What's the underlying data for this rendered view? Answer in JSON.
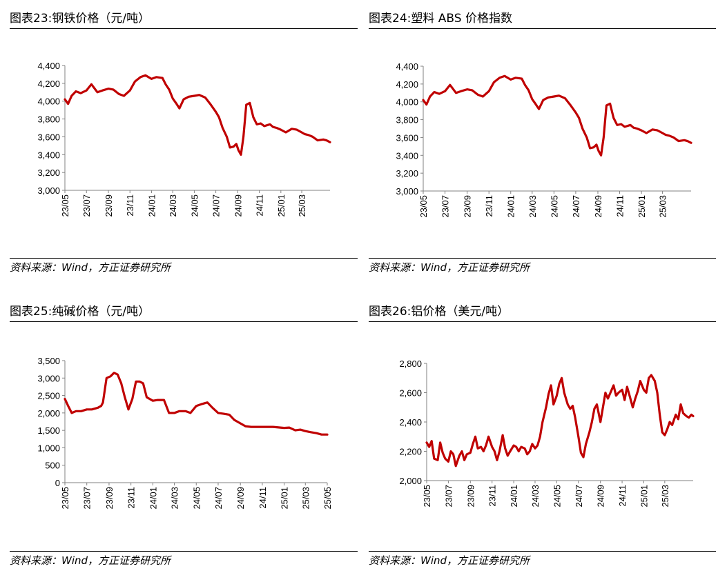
{
  "source_text": "资料来源：Wind，方正证券研究所",
  "colors": {
    "series": "#c00000",
    "axis": "#808080",
    "rule": "#000000"
  },
  "chart_data": [
    {
      "id": "steel",
      "type": "line",
      "title": "图表23:钢铁价格（元/吨）",
      "xlabel": "",
      "ylabel": "",
      "ylim": [
        3000,
        4400
      ],
      "yticks": [
        "3,000",
        "3,200",
        "3,400",
        "3,600",
        "3,800",
        "4,000",
        "4,200",
        "4,400"
      ],
      "ytick_values": [
        3000,
        3200,
        3400,
        3600,
        3800,
        4000,
        4200,
        4400
      ],
      "xlim": [
        "2023-05-01",
        "2025-05-20"
      ],
      "xticks": [
        "23/05",
        "23/07",
        "23/09",
        "23/11",
        "24/01",
        "24/03",
        "24/05",
        "24/07",
        "24/09",
        "24/11",
        "25/01",
        "25/03"
      ],
      "xtick_dates": [
        "2023-05-01",
        "2023-07-01",
        "2023-09-01",
        "2023-11-01",
        "2024-01-01",
        "2024-03-01",
        "2024-05-01",
        "2024-07-01",
        "2024-09-01",
        "2024-11-01",
        "2025-01-01",
        "2025-03-01"
      ],
      "grid": false,
      "legend": "none",
      "series": [
        {
          "x": [
            "2023-05-01",
            "2023-05-10",
            "2023-05-20",
            "2023-06-01",
            "2023-06-15",
            "2023-07-01",
            "2023-07-15",
            "2023-08-01",
            "2023-08-15",
            "2023-09-01",
            "2023-09-15",
            "2023-10-01",
            "2023-10-15",
            "2023-11-01",
            "2023-11-15",
            "2023-12-01",
            "2023-12-15",
            "2024-01-01",
            "2024-01-15",
            "2024-02-01",
            "2024-02-10",
            "2024-02-20",
            "2024-03-01",
            "2024-03-10",
            "2024-03-20",
            "2024-04-01",
            "2024-04-15",
            "2024-05-01",
            "2024-05-15",
            "2024-06-01",
            "2024-06-15",
            "2024-07-01",
            "2024-07-10",
            "2024-07-20",
            "2024-08-01",
            "2024-08-10",
            "2024-08-20",
            "2024-08-28",
            "2024-09-03",
            "2024-09-10",
            "2024-09-17",
            "2024-09-25",
            "2024-10-05",
            "2024-10-15",
            "2024-10-25",
            "2024-11-05",
            "2024-11-15",
            "2024-12-01",
            "2024-12-10",
            "2024-12-20",
            "2025-01-01",
            "2025-01-15",
            "2025-02-01",
            "2025-02-15",
            "2025-03-01",
            "2025-03-10",
            "2025-03-20",
            "2025-04-01",
            "2025-04-15",
            "2025-05-01",
            "2025-05-10",
            "2025-05-20"
          ],
          "values": [
            4020,
            3970,
            4060,
            4110,
            4090,
            4120,
            4190,
            4100,
            4120,
            4140,
            4130,
            4080,
            4060,
            4120,
            4220,
            4270,
            4290,
            4250,
            4270,
            4260,
            4190,
            4130,
            4030,
            3980,
            3920,
            4020,
            4050,
            4060,
            4070,
            4040,
            3970,
            3880,
            3820,
            3700,
            3600,
            3480,
            3490,
            3520,
            3450,
            3400,
            3600,
            3960,
            3980,
            3820,
            3740,
            3750,
            3720,
            3740,
            3710,
            3700,
            3680,
            3650,
            3690,
            3680,
            3650,
            3630,
            3620,
            3600,
            3560,
            3570,
            3560,
            3540
          ]
        }
      ]
    },
    {
      "id": "abs",
      "type": "line",
      "title": "图表24:塑料 ABS 价格指数",
      "xlabel": "",
      "ylabel": "",
      "ylim": [
        3000,
        4400
      ],
      "yticks": [
        "3,000",
        "3,200",
        "3,400",
        "3,600",
        "3,800",
        "4,000",
        "4,200",
        "4,400"
      ],
      "ytick_values": [
        3000,
        3200,
        3400,
        3600,
        3800,
        4000,
        4200,
        4400
      ],
      "xlim": [
        "2023-05-01",
        "2025-05-20"
      ],
      "xticks": [
        "23/05",
        "23/07",
        "23/09",
        "23/11",
        "24/01",
        "24/03",
        "24/05",
        "24/07",
        "24/09",
        "24/11",
        "25/01",
        "25/03"
      ],
      "xtick_dates": [
        "2023-05-01",
        "2023-07-01",
        "2023-09-01",
        "2023-11-01",
        "2024-01-01",
        "2024-03-01",
        "2024-05-01",
        "2024-07-01",
        "2024-09-01",
        "2024-11-01",
        "2025-01-01",
        "2025-03-01"
      ],
      "grid": false,
      "legend": "none",
      "series": [
        {
          "x": [
            "2023-05-01",
            "2023-05-10",
            "2023-05-20",
            "2023-06-01",
            "2023-06-15",
            "2023-07-01",
            "2023-07-15",
            "2023-08-01",
            "2023-08-15",
            "2023-09-01",
            "2023-09-15",
            "2023-10-01",
            "2023-10-15",
            "2023-11-01",
            "2023-11-15",
            "2023-12-01",
            "2023-12-15",
            "2024-01-01",
            "2024-01-15",
            "2024-02-01",
            "2024-02-10",
            "2024-02-20",
            "2024-03-01",
            "2024-03-10",
            "2024-03-20",
            "2024-04-01",
            "2024-04-15",
            "2024-05-01",
            "2024-05-15",
            "2024-06-01",
            "2024-06-15",
            "2024-07-01",
            "2024-07-10",
            "2024-07-20",
            "2024-08-01",
            "2024-08-10",
            "2024-08-20",
            "2024-08-28",
            "2024-09-03",
            "2024-09-10",
            "2024-09-17",
            "2024-09-25",
            "2024-10-05",
            "2024-10-15",
            "2024-10-25",
            "2024-11-05",
            "2024-11-15",
            "2024-12-01",
            "2024-12-10",
            "2024-12-20",
            "2025-01-01",
            "2025-01-15",
            "2025-02-01",
            "2025-02-15",
            "2025-03-01",
            "2025-03-10",
            "2025-03-20",
            "2025-04-01",
            "2025-04-15",
            "2025-05-01",
            "2025-05-10",
            "2025-05-20"
          ],
          "values": [
            4020,
            3970,
            4060,
            4110,
            4090,
            4120,
            4190,
            4100,
            4120,
            4140,
            4130,
            4080,
            4060,
            4120,
            4220,
            4270,
            4290,
            4250,
            4270,
            4260,
            4190,
            4130,
            4030,
            3980,
            3920,
            4020,
            4050,
            4060,
            4070,
            4040,
            3970,
            3880,
            3820,
            3700,
            3600,
            3480,
            3490,
            3520,
            3450,
            3400,
            3600,
            3960,
            3980,
            3820,
            3740,
            3750,
            3720,
            3740,
            3710,
            3700,
            3680,
            3650,
            3690,
            3680,
            3650,
            3630,
            3620,
            3600,
            3560,
            3570,
            3560,
            3540
          ]
        }
      ]
    },
    {
      "id": "soda",
      "type": "line",
      "title": "图表25:纯碱价格（元/吨）",
      "xlabel": "",
      "ylabel": "",
      "ylim": [
        0,
        3500
      ],
      "yticks": [
        "0",
        "500",
        "1,000",
        "1,500",
        "2,000",
        "2,500",
        "3,000",
        "3,500"
      ],
      "ytick_values": [
        0,
        500,
        1000,
        1500,
        2000,
        2500,
        3000,
        3500
      ],
      "xlim": [
        "2023-05-01",
        "2025-05-01"
      ],
      "xticks": [
        "23/05",
        "23/07",
        "23/09",
        "23/11",
        "24/01",
        "24/03",
        "24/05",
        "24/07",
        "24/09",
        "24/11",
        "25/01",
        "25/03",
        "25/05"
      ],
      "xtick_dates": [
        "2023-05-01",
        "2023-07-01",
        "2023-09-01",
        "2023-11-01",
        "2024-01-01",
        "2024-03-01",
        "2024-05-01",
        "2024-07-01",
        "2024-09-01",
        "2024-11-01",
        "2025-01-01",
        "2025-03-01",
        "2025-05-01"
      ],
      "grid": false,
      "legend": "none",
      "series": [
        {
          "x": [
            "2023-05-01",
            "2023-05-10",
            "2023-05-20",
            "2023-06-01",
            "2023-06-15",
            "2023-07-01",
            "2023-07-15",
            "2023-08-01",
            "2023-08-10",
            "2023-08-15",
            "2023-08-25",
            "2023-09-05",
            "2023-09-15",
            "2023-09-25",
            "2023-10-05",
            "2023-10-15",
            "2023-10-25",
            "2023-11-05",
            "2023-11-15",
            "2023-11-25",
            "2023-12-05",
            "2023-12-15",
            "2024-01-01",
            "2024-01-15",
            "2024-02-01",
            "2024-02-15",
            "2024-03-01",
            "2024-03-15",
            "2024-04-01",
            "2024-04-15",
            "2024-05-01",
            "2024-05-15",
            "2024-06-01",
            "2024-06-15",
            "2024-07-01",
            "2024-07-15",
            "2024-08-01",
            "2024-08-15",
            "2024-09-01",
            "2024-09-15",
            "2024-10-01",
            "2024-11-01",
            "2024-12-01",
            "2025-01-01",
            "2025-01-15",
            "2025-02-01",
            "2025-02-15",
            "2025-03-01",
            "2025-03-15",
            "2025-04-01",
            "2025-04-15",
            "2025-05-01"
          ],
          "values": [
            2400,
            2200,
            2000,
            2050,
            2050,
            2100,
            2100,
            2150,
            2200,
            2300,
            3000,
            3050,
            3150,
            3100,
            2850,
            2450,
            2100,
            2400,
            2900,
            2900,
            2850,
            2450,
            2350,
            2370,
            2370,
            2000,
            2000,
            2050,
            2050,
            2000,
            2200,
            2250,
            2300,
            2150,
            2000,
            1980,
            1950,
            1800,
            1700,
            1620,
            1600,
            1600,
            1600,
            1570,
            1580,
            1500,
            1520,
            1480,
            1450,
            1420,
            1380,
            1380
          ]
        }
      ]
    },
    {
      "id": "aluminum",
      "type": "line",
      "title": "图表26:铝价格（美元/吨）",
      "xlabel": "",
      "ylabel": "",
      "ylim": [
        2000,
        2800
      ],
      "yticks": [
        "2,000",
        "2,200",
        "2,400",
        "2,600",
        "2,800"
      ],
      "ytick_values": [
        2000,
        2200,
        2400,
        2600,
        2800
      ],
      "xlim": [
        "2023-05-01",
        "2025-05-20"
      ],
      "xticks": [
        "23/05",
        "23/07",
        "23/09",
        "23/11",
        "24/01",
        "24/03",
        "24/05",
        "24/07",
        "24/09",
        "24/11",
        "25/01",
        "25/03"
      ],
      "xtick_dates": [
        "2023-05-01",
        "2023-07-01",
        "2023-09-01",
        "2023-11-01",
        "2024-01-01",
        "2024-03-01",
        "2024-05-01",
        "2024-07-01",
        "2024-09-01",
        "2024-11-01",
        "2025-01-01",
        "2025-03-01"
      ],
      "grid": false,
      "legend": "none",
      "series": [
        {
          "x": [
            "2023-05-01",
            "2023-05-08",
            "2023-05-15",
            "2023-05-22",
            "2023-06-01",
            "2023-06-08",
            "2023-06-15",
            "2023-06-22",
            "2023-07-01",
            "2023-07-08",
            "2023-07-15",
            "2023-07-22",
            "2023-08-01",
            "2023-08-08",
            "2023-08-15",
            "2023-08-22",
            "2023-09-01",
            "2023-09-08",
            "2023-09-15",
            "2023-09-22",
            "2023-10-01",
            "2023-10-08",
            "2023-10-15",
            "2023-10-22",
            "2023-11-01",
            "2023-11-08",
            "2023-11-15",
            "2023-11-22",
            "2023-12-01",
            "2023-12-08",
            "2023-12-15",
            "2023-12-22",
            "2024-01-01",
            "2024-01-08",
            "2024-01-15",
            "2024-01-22",
            "2024-02-01",
            "2024-02-08",
            "2024-02-15",
            "2024-02-22",
            "2024-03-01",
            "2024-03-08",
            "2024-03-15",
            "2024-03-22",
            "2024-04-01",
            "2024-04-08",
            "2024-04-15",
            "2024-04-22",
            "2024-05-01",
            "2024-05-08",
            "2024-05-15",
            "2024-05-22",
            "2024-06-01",
            "2024-06-08",
            "2024-06-15",
            "2024-06-22",
            "2024-07-01",
            "2024-07-08",
            "2024-07-15",
            "2024-07-22",
            "2024-08-01",
            "2024-08-08",
            "2024-08-15",
            "2024-08-22",
            "2024-09-01",
            "2024-09-08",
            "2024-09-15",
            "2024-09-22",
            "2024-10-01",
            "2024-10-08",
            "2024-10-15",
            "2024-10-22",
            "2024-11-01",
            "2024-11-08",
            "2024-11-15",
            "2024-11-22",
            "2024-12-01",
            "2024-12-08",
            "2024-12-15",
            "2024-12-22",
            "2025-01-01",
            "2025-01-08",
            "2025-01-15",
            "2025-01-22",
            "2025-02-01",
            "2025-02-08",
            "2025-02-15",
            "2025-02-22",
            "2025-03-01",
            "2025-03-08",
            "2025-03-15",
            "2025-03-22",
            "2025-04-01",
            "2025-04-08",
            "2025-04-15",
            "2025-04-22",
            "2025-05-01",
            "2025-05-08",
            "2025-05-15",
            "2025-05-20"
          ],
          "values": [
            2260,
            2230,
            2270,
            2150,
            2140,
            2260,
            2190,
            2150,
            2130,
            2200,
            2180,
            2100,
            2170,
            2200,
            2140,
            2180,
            2190,
            2250,
            2300,
            2220,
            2230,
            2200,
            2240,
            2300,
            2230,
            2200,
            2140,
            2200,
            2310,
            2220,
            2170,
            2200,
            2240,
            2230,
            2200,
            2230,
            2220,
            2180,
            2200,
            2250,
            2220,
            2240,
            2300,
            2400,
            2500,
            2590,
            2650,
            2520,
            2580,
            2660,
            2700,
            2600,
            2520,
            2490,
            2510,
            2430,
            2300,
            2190,
            2160,
            2250,
            2330,
            2400,
            2490,
            2520,
            2400,
            2500,
            2600,
            2560,
            2610,
            2650,
            2580,
            2600,
            2620,
            2550,
            2640,
            2580,
            2500,
            2560,
            2610,
            2680,
            2620,
            2600,
            2700,
            2720,
            2680,
            2600,
            2450,
            2330,
            2310,
            2350,
            2400,
            2380,
            2450,
            2420,
            2520,
            2460,
            2440,
            2430,
            2450,
            2440
          ]
        }
      ]
    }
  ]
}
